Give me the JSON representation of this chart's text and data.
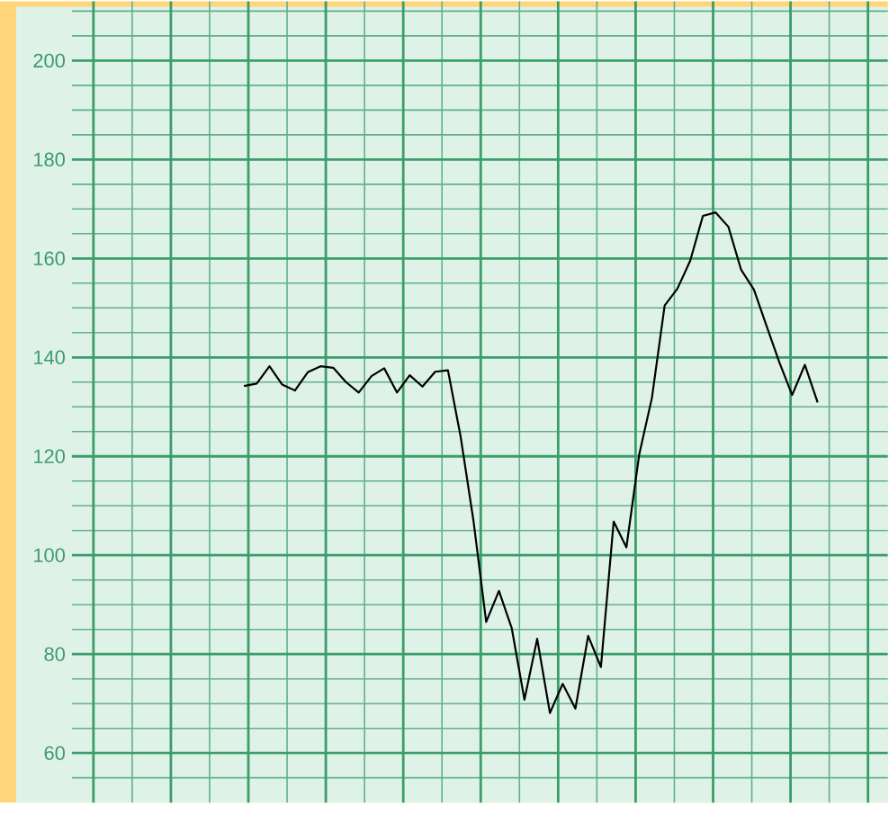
{
  "chart_data": {
    "type": "line",
    "tick_labels": "y",
    "grid": true,
    "marker": "none",
    "line_style": "solid",
    "categories": [
      null,
      null,
      null,
      null,
      null,
      null,
      null,
      null,
      null,
      null,
      null,
      null,
      null,
      null,
      null,
      null,
      null,
      null,
      null,
      null,
      null,
      null,
      null,
      null,
      null,
      null,
      null,
      null,
      null,
      null,
      null,
      null,
      null,
      null,
      null,
      null,
      null,
      null,
      null,
      null,
      null,
      null,
      null,
      null,
      null,
      null,
      null,
      null,
      null,
      null,
      null,
      null,
      null,
      null,
      null,
      null,
      null,
      null,
      null,
      null,
      null,
      null,
      null,
      null
    ],
    "ylim": [
      50,
      212
    ],
    "yticks": [
      {
        "value": 55,
        "label": null
      },
      60,
      {
        "value": 65,
        "label": null
      },
      {
        "value": 70,
        "label": null
      },
      {
        "value": 75,
        "label": null
      },
      80,
      {
        "value": 85,
        "label": null
      },
      {
        "value": 90,
        "label": null
      },
      {
        "value": 95,
        "label": null
      },
      100,
      {
        "value": 105,
        "label": null
      },
      {
        "value": 110,
        "label": null
      },
      {
        "value": 115,
        "label": null
      },
      120,
      {
        "value": 125,
        "label": null
      },
      {
        "value": 130,
        "label": null
      },
      {
        "value": 135,
        "label": null
      },
      140,
      {
        "value": 145,
        "label": null
      },
      {
        "value": 150,
        "label": null
      },
      {
        "value": 155,
        "label": null
      },
      160,
      {
        "value": 165,
        "label": null
      },
      {
        "value": 170,
        "label": null
      },
      {
        "value": 175,
        "label": null
      },
      180,
      {
        "value": 185,
        "label": null
      },
      {
        "value": 190,
        "label": null
      },
      {
        "value": 195,
        "label": null
      },
      200,
      {
        "value": 205,
        "label": null
      },
      {
        "value": 210,
        "label": null
      }
    ],
    "series": [
      {
        "color": "#000000",
        "values": [
          null,
          null,
          null,
          null,
          null,
          null,
          null,
          null,
          null,
          null,
          null,
          null,
          null,
          134.2,
          134.7,
          138.2,
          134.5,
          133.3,
          137.0,
          138.2,
          137.9,
          135.0,
          132.9,
          136.2,
          137.8,
          132.9,
          136.4,
          134.1,
          137.1,
          137.4,
          123.9,
          107.0,
          86.5,
          92.8,
          85.3,
          70.8,
          83.1,
          68.1,
          74.0,
          69.0,
          83.7,
          77.4,
          106.8,
          101.6,
          120.3,
          131.8,
          150.5,
          153.9,
          159.5,
          168.6,
          169.3,
          166.4,
          157.7,
          153.7,
          146.3,
          139.0,
          132.4,
          138.5,
          130.9,
          null,
          null,
          null,
          null,
          null
        ]
      }
    ]
  }
}
